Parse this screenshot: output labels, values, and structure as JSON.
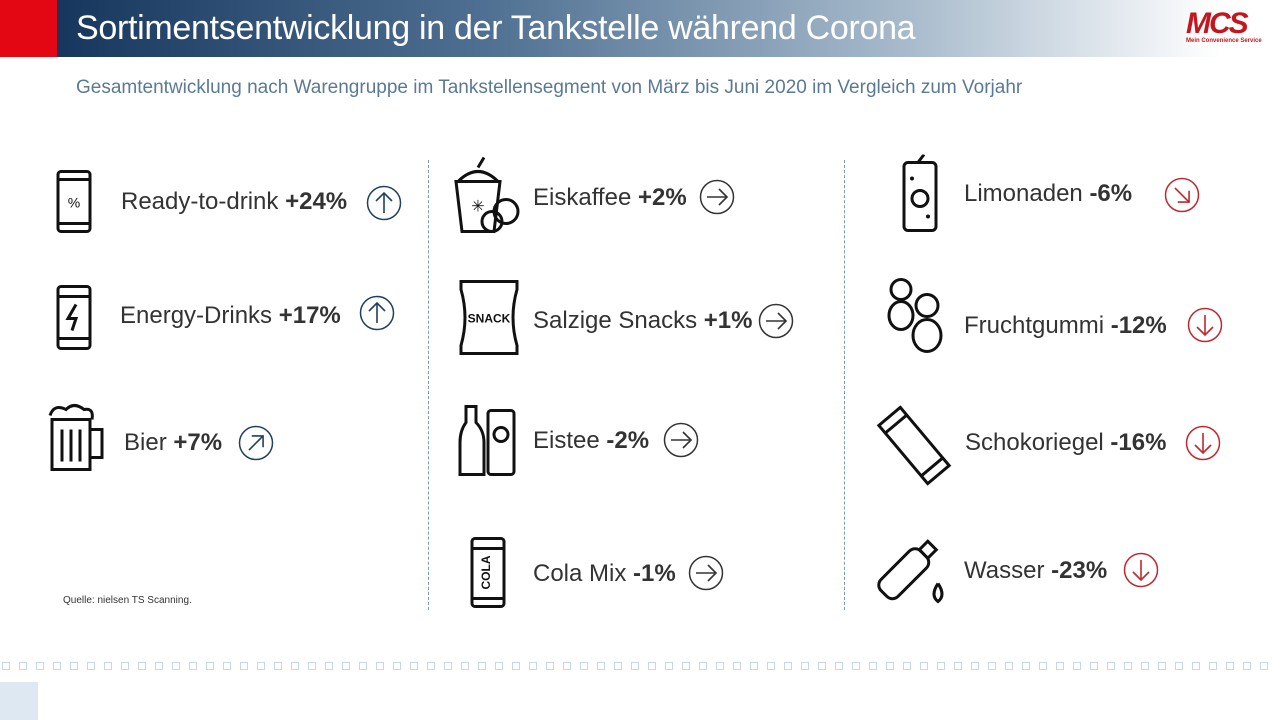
{
  "header": {
    "title": "Sortimentsentwicklung in der Tankstelle während Corona",
    "logo_text": "MCS",
    "logo_subtext": "Mein Convenience Service"
  },
  "subtitle": "Gesamtentwicklung nach Warengruppe im Tankstellensegment von März bis Juni 2020 im Vergleich zum Vorjahr",
  "colors": {
    "up": "#1f4060",
    "flat": "#333333",
    "down": "#c0282d"
  },
  "items": [
    {
      "name": "Ready-to-drink",
      "value": "+24%",
      "trend": "up",
      "icon": "can-percent-icon"
    },
    {
      "name": "Energy-Drinks",
      "value": "+17%",
      "trend": "up",
      "icon": "energy-can-icon"
    },
    {
      "name": "Bier",
      "value": "+7%",
      "trend": "up-right",
      "icon": "beer-mug-icon"
    },
    {
      "name": "Eiskaffee",
      "value": "+2%",
      "trend": "right",
      "icon": "iced-coffee-icon"
    },
    {
      "name": "Salzige Snacks",
      "value": "+1%",
      "trend": "right",
      "icon": "snack-bag-icon",
      "icon_text": "SNACK"
    },
    {
      "name": "Eistee",
      "value": "-2%",
      "trend": "right",
      "icon": "iced-tea-icon"
    },
    {
      "name": "Cola Mix",
      "value": "-1%",
      "trend": "right",
      "icon": "cola-can-icon",
      "icon_text": "COLA"
    },
    {
      "name": "Limonaden",
      "value": "-6%",
      "trend": "down-right",
      "icon": "lemonade-can-icon"
    },
    {
      "name": "Fruchtgummi",
      "value": "-12%",
      "trend": "down",
      "icon": "gummy-bears-icon"
    },
    {
      "name": "Schokoriegel",
      "value": "-16%",
      "trend": "down",
      "icon": "chocolate-bar-icon"
    },
    {
      "name": "Wasser",
      "value": "-23%",
      "trend": "down",
      "icon": "water-bottle-icon"
    }
  ],
  "source": "Quelle: nielsen TS Scanning."
}
